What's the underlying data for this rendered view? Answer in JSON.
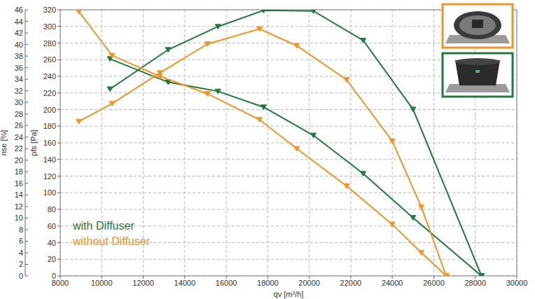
{
  "chart_data": {
    "type": "line",
    "x_label": "qv [m³/h]",
    "y_label": "nse [%]",
    "y2_label": "pfs [Pa]",
    "xlim": [
      8000,
      30000
    ],
    "xticks": [
      8000,
      10000,
      12000,
      14000,
      16000,
      18000,
      20000,
      22000,
      24000,
      26000,
      28000,
      30000
    ],
    "ylim": [
      0,
      46
    ],
    "yticks": [
      0,
      2,
      4,
      6,
      8,
      10,
      12,
      14,
      16,
      18,
      20,
      22,
      24,
      26,
      28,
      30,
      32,
      34,
      36,
      38,
      40,
      42,
      44,
      46
    ],
    "y2lim": [
      0,
      320
    ],
    "y2ticks": [
      0,
      20,
      40,
      60,
      80,
      100,
      120,
      140,
      160,
      180,
      200,
      220,
      240,
      260,
      280,
      300,
      320
    ],
    "grid": true,
    "legend": "lower left",
    "marker": "triangle-down",
    "line_style": "solid",
    "series": [
      {
        "name": "with Diffuser",
        "color": "#1f7a3c",
        "x": [
          10400,
          13200,
          15600,
          17800,
          20200,
          22600,
          25000,
          28300
        ],
        "values": [
          32.3,
          39.1,
          43.1,
          45.9,
          45.8,
          40.7,
          28.8,
          0
        ]
      },
      {
        "name": "with Diffuser",
        "color": "#1f7a3c",
        "axis": "y2",
        "x": [
          10400,
          13200,
          15600,
          17800,
          20200,
          22600,
          25000,
          28300
        ],
        "values": [
          261,
          233,
          222,
          203,
          169,
          123,
          70,
          0
        ]
      },
      {
        "name": "without Diffuser",
        "color": "#f39323",
        "x": [
          8900,
          10500,
          12800,
          15100,
          17600,
          19400,
          21800,
          24000,
          25400,
          26600
        ],
        "values": [
          26.7,
          29.8,
          35.1,
          40.1,
          42.7,
          39.8,
          33.9,
          23.3,
          11.9,
          0
        ]
      },
      {
        "name": "without Diffuser",
        "color": "#f39323",
        "axis": "y2",
        "x": [
          8900,
          10500,
          12800,
          15100,
          17600,
          19400,
          21800,
          24000,
          25400,
          26600
        ],
        "values": [
          318,
          265,
          240,
          219,
          188,
          153,
          108,
          62,
          28,
          0
        ]
      }
    ]
  }
}
